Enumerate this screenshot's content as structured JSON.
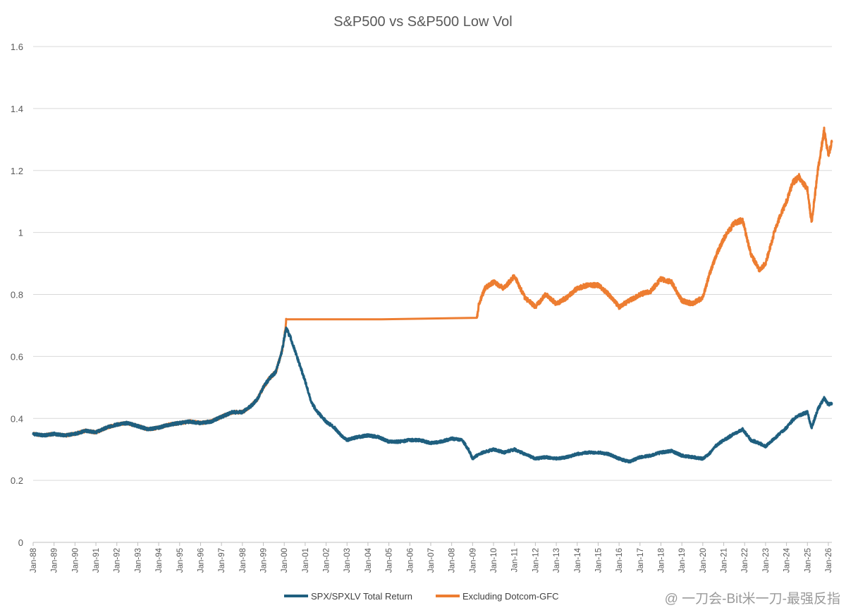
{
  "chart_data": {
    "type": "line",
    "title": "S&P500 vs S&P500 Low Vol",
    "xlabel": "",
    "ylabel": "",
    "ylim": [
      0,
      1.6
    ],
    "yticks": [
      "0",
      "0.2",
      "0.4",
      "0.6",
      "0.8",
      "1",
      "1.2",
      "1.4",
      "1.6"
    ],
    "ytick_values": [
      0,
      0.2,
      0.4,
      0.6,
      0.8,
      1.0,
      1.2,
      1.4,
      1.6
    ],
    "xlim": [
      1988.0,
      2026.17
    ],
    "categories": [
      "Jan-88",
      "Jan-89",
      "Jan-90",
      "Jan-91",
      "Jan-92",
      "Jan-93",
      "Jan-94",
      "Jan-95",
      "Jan-96",
      "Jan-97",
      "Jan-98",
      "Jan-99",
      "Jan-00",
      "Jan-01",
      "Jan-02",
      "Jan-03",
      "Jan-04",
      "Jan-05",
      "Jan-06",
      "Jan-07",
      "Jan-08",
      "Jan-09",
      "Jan-10",
      "Jan-11",
      "Jan-12",
      "Jan-13",
      "Jan-14",
      "Jan-15",
      "Jan-16",
      "Jan-17",
      "Jan-18",
      "Jan-19",
      "Jan-20",
      "Jan-21",
      "Jan-22",
      "Jan-23",
      "Jan-24",
      "Jan-25",
      "Jan-26"
    ],
    "grid": true,
    "legend_position": "bottom-center",
    "series": [
      {
        "name": "SPX/SPXLV Total Return",
        "color": "#1f5f7f",
        "x": [
          1988.0,
          1988.5,
          1989.0,
          1989.5,
          1990.0,
          1990.5,
          1991.0,
          1991.5,
          1992.0,
          1992.5,
          1993.0,
          1993.5,
          1994.0,
          1994.5,
          1995.0,
          1995.5,
          1996.0,
          1996.5,
          1997.0,
          1997.5,
          1998.0,
          1998.4,
          1998.7,
          1999.0,
          1999.3,
          1999.6,
          1999.9,
          2000.0,
          2000.1,
          2000.3,
          2000.5,
          2000.7,
          2001.0,
          2001.3,
          2001.6,
          2002.0,
          2002.4,
          2002.8,
          2003.0,
          2003.5,
          2004.0,
          2004.5,
          2005.0,
          2005.5,
          2006.0,
          2006.5,
          2007.0,
          2007.5,
          2008.0,
          2008.5,
          2008.8,
          2009.0,
          2009.2,
          2009.5,
          2010.0,
          2010.5,
          2011.0,
          2011.5,
          2012.0,
          2012.5,
          2013.0,
          2013.5,
          2014.0,
          2014.5,
          2015.0,
          2015.5,
          2016.0,
          2016.5,
          2017.0,
          2017.5,
          2018.0,
          2018.5,
          2019.0,
          2019.5,
          2020.0,
          2020.3,
          2020.6,
          2021.0,
          2021.5,
          2021.9,
          2022.3,
          2022.7,
          2023.0,
          2023.5,
          2024.0,
          2024.3,
          2024.6,
          2025.0,
          2025.2,
          2025.5,
          2025.8,
          2026.0,
          2026.17
        ],
        "values": [
          0.35,
          0.345,
          0.35,
          0.345,
          0.35,
          0.36,
          0.355,
          0.37,
          0.38,
          0.385,
          0.375,
          0.365,
          0.37,
          0.38,
          0.385,
          0.39,
          0.385,
          0.39,
          0.405,
          0.42,
          0.42,
          0.44,
          0.46,
          0.5,
          0.53,
          0.55,
          0.62,
          0.66,
          0.69,
          0.66,
          0.62,
          0.58,
          0.52,
          0.45,
          0.42,
          0.39,
          0.37,
          0.34,
          0.33,
          0.34,
          0.345,
          0.34,
          0.325,
          0.325,
          0.33,
          0.33,
          0.32,
          0.325,
          0.335,
          0.33,
          0.3,
          0.27,
          0.28,
          0.29,
          0.3,
          0.29,
          0.3,
          0.285,
          0.27,
          0.275,
          0.27,
          0.275,
          0.285,
          0.29,
          0.29,
          0.285,
          0.27,
          0.26,
          0.275,
          0.28,
          0.29,
          0.295,
          0.28,
          0.275,
          0.27,
          0.285,
          0.31,
          0.33,
          0.35,
          0.365,
          0.33,
          0.32,
          0.31,
          0.34,
          0.37,
          0.395,
          0.41,
          0.42,
          0.37,
          0.43,
          0.465,
          0.445,
          0.45
        ]
      },
      {
        "name": "Excluding Dotcom-GFC",
        "color": "#ed7d31",
        "x": [
          1988.0,
          1988.5,
          1989.0,
          1989.5,
          1990.0,
          1990.5,
          1991.0,
          1991.5,
          1992.0,
          1992.5,
          1993.0,
          1993.5,
          1994.0,
          1994.5,
          1995.0,
          1995.5,
          1996.0,
          1996.5,
          1997.0,
          1997.5,
          1998.0,
          1998.4,
          1998.7,
          1999.0,
          1999.3,
          1999.6,
          1999.9,
          2000.0,
          2000.1,
          2009.2,
          2009.3,
          2009.6,
          2010.0,
          2010.5,
          2011.0,
          2011.5,
          2012.0,
          2012.5,
          2013.0,
          2013.5,
          2014.0,
          2014.5,
          2015.0,
          2015.5,
          2016.0,
          2016.5,
          2017.0,
          2017.5,
          2018.0,
          2018.5,
          2019.0,
          2019.5,
          2020.0,
          2020.3,
          2020.6,
          2021.0,
          2021.5,
          2021.9,
          2022.3,
          2022.7,
          2023.0,
          2023.5,
          2024.0,
          2024.3,
          2024.6,
          2025.0,
          2025.2,
          2025.5,
          2025.8,
          2026.0,
          2026.17
        ],
        "values": [
          0.35,
          0.345,
          0.35,
          0.345,
          0.35,
          0.36,
          0.355,
          0.37,
          0.38,
          0.385,
          0.375,
          0.365,
          0.37,
          0.38,
          0.385,
          0.39,
          0.385,
          0.39,
          0.405,
          0.42,
          0.42,
          0.44,
          0.46,
          0.5,
          0.53,
          0.55,
          0.62,
          0.66,
          0.72,
          0.72,
          0.77,
          0.82,
          0.84,
          0.82,
          0.86,
          0.79,
          0.76,
          0.8,
          0.77,
          0.79,
          0.82,
          0.83,
          0.83,
          0.8,
          0.76,
          0.78,
          0.8,
          0.81,
          0.85,
          0.84,
          0.78,
          0.77,
          0.79,
          0.86,
          0.92,
          0.98,
          1.03,
          1.04,
          0.93,
          0.88,
          0.9,
          1.02,
          1.1,
          1.16,
          1.18,
          1.14,
          1.03,
          1.2,
          1.33,
          1.25,
          1.29
        ]
      }
    ]
  },
  "watermark": {
    "text": "@ 一刀会-Bit米一刀-最强反指"
  }
}
